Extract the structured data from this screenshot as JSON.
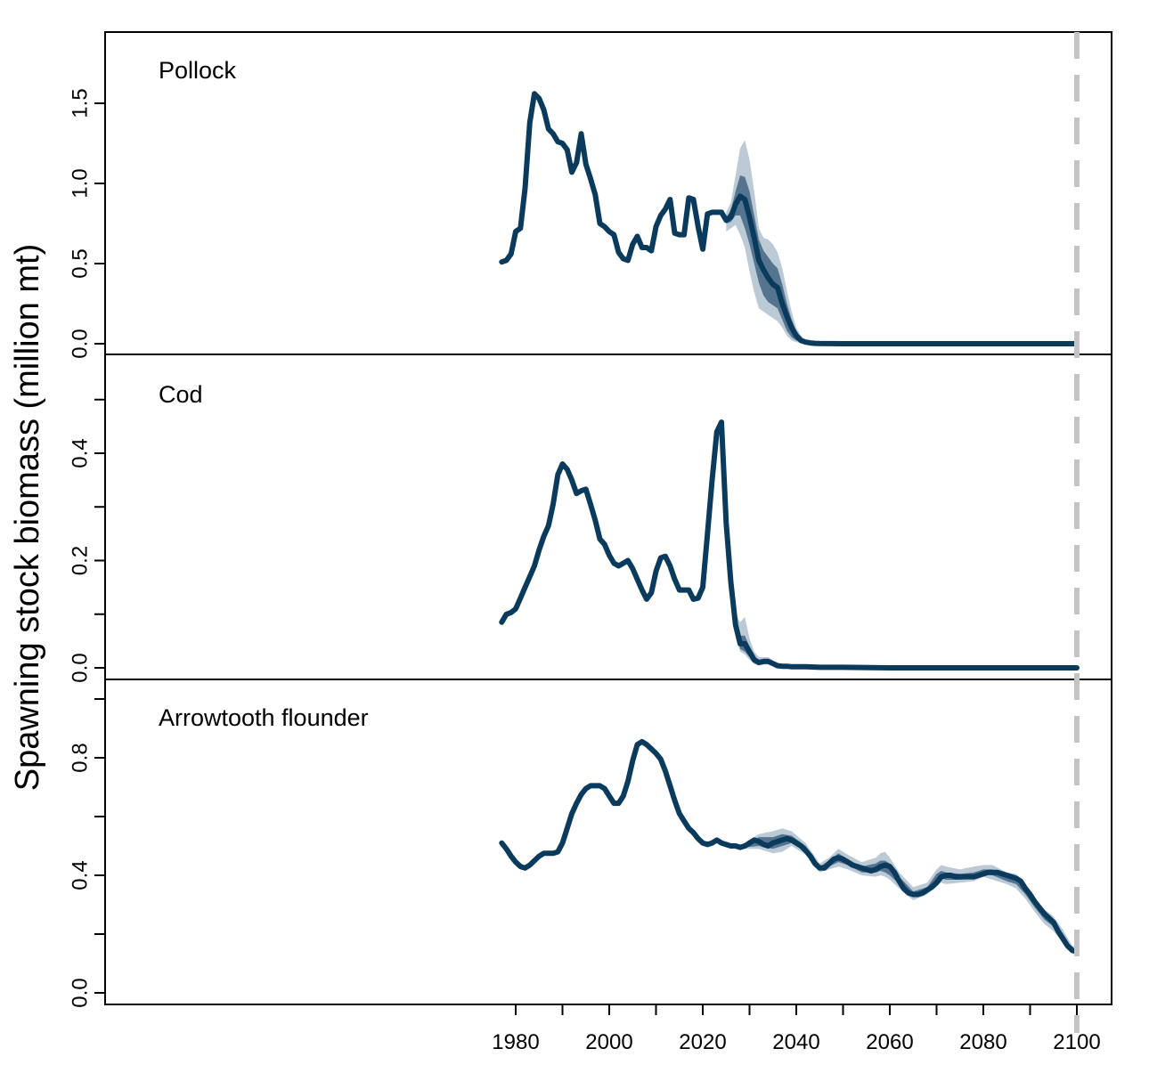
{
  "chart_data": {
    "type": "line",
    "ylabel": "Spawning stock biomass (million mt)",
    "x_range": [
      1977,
      2100
    ],
    "x_ticks": [
      1980,
      2000,
      2020,
      2040,
      2060,
      2080,
      2100
    ],
    "x_tick_labels": [
      "1980",
      "2000",
      "2020",
      "2040",
      "2060",
      "2080",
      "2100"
    ],
    "colors": {
      "line": "#0b3b5c",
      "band_inner": "#557490",
      "band_outer": "#bccad6",
      "reference_line": "#c4c4c4"
    },
    "reference_line": {
      "x": 2100,
      "style": "dashed"
    },
    "grid": false,
    "panels": [
      {
        "label": "Pollock",
        "ylim": [
          0,
          1.9
        ],
        "y_ticks": [
          0.0,
          0.5,
          1.0,
          1.5
        ],
        "y_tick_labels": [
          "0.0",
          "0.5",
          "1.0",
          "1.5"
        ],
        "minor_ticks": [],
        "series": {
          "x": [
            1977,
            1978,
            1979,
            1980,
            1981,
            1982,
            1983,
            1984,
            1985,
            1986,
            1987,
            1988,
            1989,
            1990,
            1991,
            1992,
            1993,
            1994,
            1995,
            1996,
            1997,
            1998,
            1999,
            2000,
            2001,
            2002,
            2003,
            2004,
            2005,
            2006,
            2007,
            2008,
            2009,
            2010,
            2011,
            2012,
            2013,
            2014,
            2015,
            2016,
            2017,
            2018,
            2019,
            2020,
            2021,
            2022,
            2023,
            2024,
            2025,
            2026,
            2027,
            2028,
            2029,
            2030,
            2031,
            2032,
            2033,
            2034,
            2035,
            2036,
            2037,
            2038,
            2039,
            2040,
            2041,
            2042,
            2043,
            2044,
            2045,
            2050,
            2060,
            2070,
            2080,
            2090,
            2100
          ],
          "values": [
            0.51,
            0.52,
            0.56,
            0.7,
            0.72,
            0.97,
            1.38,
            1.56,
            1.53,
            1.46,
            1.34,
            1.31,
            1.26,
            1.25,
            1.21,
            1.07,
            1.13,
            1.31,
            1.12,
            1.03,
            0.93,
            0.75,
            0.73,
            0.7,
            0.68,
            0.57,
            0.53,
            0.52,
            0.62,
            0.67,
            0.6,
            0.6,
            0.58,
            0.73,
            0.8,
            0.84,
            0.9,
            0.69,
            0.68,
            0.68,
            0.91,
            0.9,
            0.73,
            0.59,
            0.81,
            0.82,
            0.82,
            0.82,
            0.77,
            0.79,
            0.87,
            0.92,
            0.9,
            0.79,
            0.66,
            0.52,
            0.46,
            0.41,
            0.37,
            0.35,
            0.25,
            0.17,
            0.1,
            0.05,
            0.02,
            0.01,
            0.005,
            0.002,
            0.001,
            0.0,
            0.0,
            0.0,
            0.0,
            0.0,
            0.0
          ],
          "band_x": [
            2025,
            2026,
            2027,
            2028,
            2029,
            2030,
            2031,
            2032,
            2033,
            2034,
            2035,
            2036,
            2037,
            2038,
            2039,
            2040,
            2041,
            2042,
            2043
          ],
          "band_inner": {
            "lower": [
              0.75,
              0.76,
              0.8,
              0.8,
              0.72,
              0.62,
              0.5,
              0.38,
              0.3,
              0.26,
              0.24,
              0.22,
              0.15,
              0.08,
              0.04,
              0.02,
              0.01,
              0.003,
              0.0
            ],
            "upper": [
              0.79,
              0.83,
              0.95,
              1.05,
              1.04,
              0.95,
              0.8,
              0.65,
              0.58,
              0.54,
              0.5,
              0.47,
              0.37,
              0.25,
              0.15,
              0.08,
              0.04,
              0.015,
              0.005
            ]
          },
          "band_outer": {
            "lower": [
              0.7,
              0.72,
              0.74,
              0.68,
              0.6,
              0.45,
              0.32,
              0.22,
              0.2,
              0.18,
              0.16,
              0.14,
              0.1,
              0.05,
              0.02,
              0.01,
              0.005,
              0.001,
              0.0
            ],
            "upper": [
              0.82,
              0.88,
              1.05,
              1.22,
              1.27,
              1.15,
              0.95,
              0.72,
              0.66,
              0.65,
              0.62,
              0.57,
              0.47,
              0.33,
              0.2,
              0.1,
              0.05,
              0.02,
              0.007
            ]
          }
        }
      },
      {
        "label": "Cod",
        "ylim": [
          0,
          0.55
        ],
        "y_ticks": [
          0.0,
          0.2,
          0.4
        ],
        "y_tick_labels": [
          "0.0",
          "0.2",
          "0.4"
        ],
        "minor_ticks": [
          0.1,
          0.3,
          0.5
        ],
        "series": {
          "x": [
            1977,
            1978,
            1979,
            1980,
            1981,
            1982,
            1983,
            1984,
            1985,
            1986,
            1987,
            1988,
            1989,
            1990,
            1991,
            1992,
            1993,
            1994,
            1995,
            1996,
            1997,
            1998,
            1999,
            2000,
            2001,
            2002,
            2003,
            2004,
            2005,
            2006,
            2007,
            2008,
            2009,
            2010,
            2011,
            2012,
            2013,
            2014,
            2015,
            2016,
            2017,
            2018,
            2019,
            2020,
            2021,
            2022,
            2023,
            2024,
            2025,
            2026,
            2027,
            2028,
            2029,
            2030,
            2031,
            2032,
            2033,
            2034,
            2035,
            2036,
            2037,
            2038,
            2039,
            2040,
            2041,
            2042,
            2045,
            2050,
            2060,
            2070,
            2080,
            2090,
            2100
          ],
          "values": [
            0.085,
            0.1,
            0.103,
            0.11,
            0.13,
            0.15,
            0.17,
            0.19,
            0.22,
            0.245,
            0.265,
            0.305,
            0.36,
            0.38,
            0.37,
            0.35,
            0.325,
            0.33,
            0.333,
            0.305,
            0.275,
            0.24,
            0.23,
            0.21,
            0.195,
            0.19,
            0.195,
            0.2,
            0.185,
            0.165,
            0.145,
            0.128,
            0.14,
            0.18,
            0.205,
            0.208,
            0.19,
            0.165,
            0.145,
            0.145,
            0.145,
            0.128,
            0.13,
            0.15,
            0.25,
            0.35,
            0.44,
            0.458,
            0.27,
            0.16,
            0.08,
            0.045,
            0.045,
            0.03,
            0.015,
            0.01,
            0.012,
            0.012,
            0.008,
            0.004,
            0.003,
            0.003,
            0.002,
            0.002,
            0.002,
            0.002,
            0.001,
            0.001,
            0.0,
            0.0,
            0.0,
            0.0,
            0.0
          ],
          "band_x": [
            2025,
            2026,
            2027,
            2028,
            2029,
            2030,
            2031,
            2032,
            2033,
            2034,
            2035,
            2036
          ],
          "band_inner": {
            "lower": [
              0.26,
              0.15,
              0.07,
              0.035,
              0.03,
              0.02,
              0.01,
              0.006,
              0.008,
              0.008,
              0.005,
              0.002
            ],
            "upper": [
              0.28,
              0.17,
              0.09,
              0.06,
              0.06,
              0.04,
              0.02,
              0.014,
              0.016,
              0.016,
              0.011,
              0.006
            ]
          },
          "band_outer": {
            "lower": [
              0.25,
              0.14,
              0.06,
              0.03,
              0.025,
              0.015,
              0.007,
              0.004,
              0.006,
              0.006,
              0.003,
              0.001
            ],
            "upper": [
              0.29,
              0.18,
              0.1,
              0.085,
              0.095,
              0.055,
              0.03,
              0.02,
              0.02,
              0.02,
              0.014,
              0.008
            ]
          }
        }
      },
      {
        "label": "Arrowtooth flounder",
        "ylim": [
          0,
          1.0
        ],
        "y_ticks": [
          0.0,
          0.4,
          0.8
        ],
        "y_tick_labels": [
          "0.0",
          "0.4",
          "0.8"
        ],
        "minor_ticks": [
          0.2,
          0.6,
          1.0
        ],
        "series": {
          "x": [
            1977,
            1978,
            1979,
            1980,
            1981,
            1982,
            1983,
            1984,
            1985,
            1986,
            1987,
            1988,
            1989,
            1990,
            1991,
            1992,
            1993,
            1994,
            1995,
            1996,
            1997,
            1998,
            1999,
            2000,
            2001,
            2002,
            2003,
            2004,
            2005,
            2006,
            2007,
            2008,
            2009,
            2010,
            2011,
            2012,
            2013,
            2014,
            2015,
            2016,
            2017,
            2018,
            2019,
            2020,
            2021,
            2022,
            2023,
            2024,
            2025,
            2026,
            2027,
            2028,
            2029,
            2030,
            2031,
            2032,
            2033,
            2034,
            2035,
            2036,
            2037,
            2038,
            2039,
            2040,
            2041,
            2042,
            2043,
            2044,
            2045,
            2046,
            2047,
            2048,
            2049,
            2050,
            2051,
            2052,
            2053,
            2054,
            2055,
            2056,
            2057,
            2058,
            2059,
            2060,
            2061,
            2062,
            2063,
            2064,
            2065,
            2066,
            2067,
            2068,
            2069,
            2070,
            2071,
            2072,
            2073,
            2074,
            2075,
            2076,
            2077,
            2078,
            2079,
            2080,
            2081,
            2082,
            2083,
            2084,
            2085,
            2086,
            2087,
            2088,
            2089,
            2090,
            2091,
            2092,
            2093,
            2094,
            2095,
            2096,
            2097,
            2098,
            2099,
            2100
          ],
          "values": [
            0.51,
            0.49,
            0.465,
            0.445,
            0.43,
            0.425,
            0.435,
            0.45,
            0.465,
            0.475,
            0.475,
            0.475,
            0.48,
            0.51,
            0.56,
            0.61,
            0.645,
            0.675,
            0.695,
            0.705,
            0.705,
            0.705,
            0.695,
            0.67,
            0.645,
            0.645,
            0.67,
            0.72,
            0.79,
            0.845,
            0.855,
            0.845,
            0.83,
            0.815,
            0.795,
            0.755,
            0.705,
            0.655,
            0.61,
            0.585,
            0.56,
            0.545,
            0.525,
            0.51,
            0.505,
            0.51,
            0.52,
            0.51,
            0.505,
            0.5,
            0.5,
            0.495,
            0.5,
            0.51,
            0.52,
            0.515,
            0.505,
            0.5,
            0.51,
            0.515,
            0.52,
            0.525,
            0.52,
            0.51,
            0.5,
            0.485,
            0.465,
            0.44,
            0.425,
            0.425,
            0.44,
            0.455,
            0.46,
            0.455,
            0.445,
            0.435,
            0.43,
            0.425,
            0.42,
            0.415,
            0.42,
            0.43,
            0.435,
            0.43,
            0.41,
            0.38,
            0.355,
            0.34,
            0.335,
            0.335,
            0.34,
            0.35,
            0.36,
            0.375,
            0.395,
            0.4,
            0.4,
            0.395,
            0.395,
            0.395,
            0.395,
            0.395,
            0.4,
            0.405,
            0.41,
            0.41,
            0.41,
            0.405,
            0.4,
            0.395,
            0.39,
            0.38,
            0.355,
            0.335,
            0.31,
            0.29,
            0.27,
            0.255,
            0.24,
            0.21,
            0.185,
            0.16,
            0.145,
            0.14
          ],
          "band_x": [
            2029,
            2032,
            2035,
            2037,
            2039,
            2042,
            2045,
            2047,
            2049,
            2051,
            2054,
            2057,
            2058,
            2059,
            2060,
            2062,
            2065,
            2068,
            2070,
            2071,
            2072,
            2075,
            2078,
            2080,
            2082,
            2085,
            2087,
            2089,
            2091,
            2093,
            2095,
            2097,
            2099,
            2100
          ],
          "band_inner": {
            "lower": [
              0.495,
              0.5,
              0.49,
              0.5,
              0.51,
              0.48,
              0.42,
              0.43,
              0.445,
              0.435,
              0.41,
              0.41,
              0.415,
              0.41,
              0.4,
              0.37,
              0.33,
              0.345,
              0.38,
              0.39,
              0.385,
              0.385,
              0.39,
              0.405,
              0.4,
              0.38,
              0.37,
              0.335,
              0.29,
              0.25,
              0.225,
              0.18,
              0.14,
              0.135
            ],
            "upper": [
              0.505,
              0.53,
              0.53,
              0.54,
              0.535,
              0.5,
              0.43,
              0.45,
              0.475,
              0.455,
              0.43,
              0.44,
              0.45,
              0.45,
              0.44,
              0.395,
              0.345,
              0.36,
              0.405,
              0.415,
              0.41,
              0.405,
              0.41,
              0.42,
              0.42,
              0.395,
              0.39,
              0.35,
              0.305,
              0.27,
              0.245,
              0.2,
              0.15,
              0.145
            ]
          },
          "band_outer": {
            "lower": [
              0.49,
              0.49,
              0.475,
              0.48,
              0.5,
              0.47,
              0.41,
              0.42,
              0.43,
              0.42,
              0.4,
              0.395,
              0.4,
              0.395,
              0.385,
              0.355,
              0.315,
              0.335,
              0.365,
              0.375,
              0.37,
              0.375,
              0.38,
              0.395,
              0.385,
              0.37,
              0.355,
              0.32,
              0.275,
              0.235,
              0.21,
              0.17,
              0.135,
              0.13
            ],
            "upper": [
              0.51,
              0.54,
              0.55,
              0.56,
              0.55,
              0.51,
              0.44,
              0.46,
              0.49,
              0.47,
              0.445,
              0.46,
              0.475,
              0.48,
              0.46,
              0.41,
              0.36,
              0.375,
              0.42,
              0.435,
              0.43,
              0.42,
              0.43,
              0.435,
              0.435,
              0.41,
              0.405,
              0.365,
              0.32,
              0.285,
              0.26,
              0.215,
              0.16,
              0.155
            ]
          }
        }
      }
    ]
  }
}
